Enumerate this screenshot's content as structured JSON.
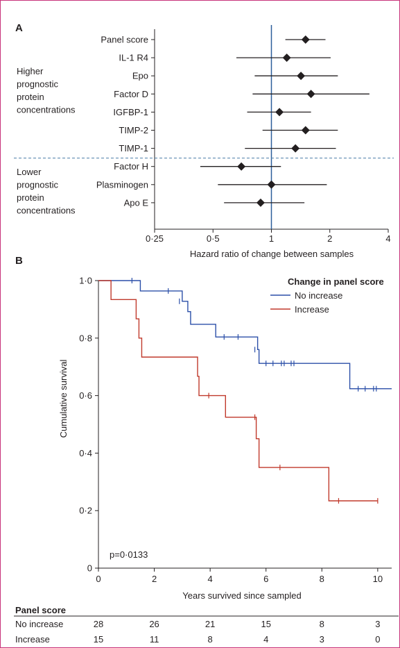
{
  "chart_data": [
    {
      "type": "forest",
      "panel": "A",
      "xlabel": "Hazard ratio of change between samples",
      "xscale": "log2",
      "xlim": [
        0.25,
        4
      ],
      "xticks": [
        "0·25",
        "0·5",
        "1",
        "2",
        "4"
      ],
      "xtick_values": [
        0.25,
        0.5,
        1,
        2,
        4
      ],
      "reference_line": 1,
      "groups": [
        {
          "label": "Higher prognostic protein concentrations",
          "label_lines": [
            "Higher",
            "prognostic",
            "protein",
            "concentrations"
          ]
        },
        {
          "label": "Lower prognostic protein concentrations",
          "label_lines": [
            "Lower",
            "prognostic",
            "protein",
            "concentrations"
          ]
        }
      ],
      "rows": [
        {
          "label": "Panel score",
          "group": 0,
          "hr": 1.5,
          "low": 1.18,
          "high": 1.9
        },
        {
          "label": "IL-1 R4",
          "group": 0,
          "hr": 1.2,
          "low": 0.66,
          "high": 2.02
        },
        {
          "label": "Epo",
          "group": 0,
          "hr": 1.42,
          "low": 0.82,
          "high": 2.2
        },
        {
          "label": "Factor D",
          "group": 0,
          "hr": 1.6,
          "low": 0.8,
          "high": 3.2
        },
        {
          "label": "IGFBP-1",
          "group": 0,
          "hr": 1.1,
          "low": 0.75,
          "high": 1.6
        },
        {
          "label": "TIMP-2",
          "group": 0,
          "hr": 1.5,
          "low": 0.9,
          "high": 2.2
        },
        {
          "label": "TIMP-1",
          "group": 0,
          "hr": 1.33,
          "low": 0.73,
          "high": 2.15
        },
        {
          "label": "Factor H",
          "group": 1,
          "hr": 0.7,
          "low": 0.43,
          "high": 1.12
        },
        {
          "label": "Plasminogen",
          "group": 1,
          "hr": 1.0,
          "low": 0.53,
          "high": 1.93
        },
        {
          "label": "Apo E",
          "group": 1,
          "hr": 0.88,
          "low": 0.57,
          "high": 1.48
        }
      ]
    },
    {
      "type": "line",
      "panel": "B",
      "xlabel": "Years survived since sampled",
      "ylabel": "Cumulative survival",
      "xlim": [
        0,
        10.5
      ],
      "ylim": [
        0,
        1
      ],
      "xticks": [
        "0",
        "2",
        "4",
        "6",
        "8",
        "10"
      ],
      "xtick_values": [
        0,
        2,
        4,
        6,
        8,
        10
      ],
      "yticks": [
        "0",
        "0·2",
        "0·4",
        "0·6",
        "0·8",
        "1·0"
      ],
      "ytick_values": [
        0,
        0.2,
        0.4,
        0.6,
        0.8,
        1.0
      ],
      "legend_title": "Change in panel score",
      "legend_position": "top-right",
      "annotation": "p=0·0133",
      "series": [
        {
          "name": "No increase",
          "color": "#2b4fa8",
          "steps": [
            [
              0,
              1.0
            ],
            [
              1.5,
              0.964
            ],
            [
              3.0,
              0.928
            ],
            [
              3.2,
              0.892
            ],
            [
              3.3,
              0.848
            ],
            [
              4.2,
              0.804
            ],
            [
              5.7,
              0.76
            ],
            [
              5.75,
              0.712
            ],
            [
              9.0,
              0.624
            ],
            [
              10.5,
              0.624
            ]
          ],
          "censor": [
            [
              1.2,
              1.0
            ],
            [
              2.5,
              0.964
            ],
            [
              2.9,
              0.928
            ],
            [
              4.5,
              0.804
            ],
            [
              5.0,
              0.804
            ],
            [
              5.6,
              0.76
            ],
            [
              6.0,
              0.712
            ],
            [
              6.25,
              0.712
            ],
            [
              6.55,
              0.712
            ],
            [
              6.65,
              0.712
            ],
            [
              6.9,
              0.712
            ],
            [
              7.0,
              0.712
            ],
            [
              9.3,
              0.624
            ],
            [
              9.55,
              0.624
            ],
            [
              9.85,
              0.624
            ],
            [
              9.95,
              0.624
            ]
          ]
        },
        {
          "name": "Increase",
          "color": "#c0392b",
          "steps": [
            [
              0,
              1.0
            ],
            [
              0.45,
              0.934
            ],
            [
              1.35,
              0.867
            ],
            [
              1.45,
              0.8
            ],
            [
              1.55,
              0.734
            ],
            [
              3.55,
              0.667
            ],
            [
              3.6,
              0.6
            ],
            [
              4.55,
              0.525
            ],
            [
              5.65,
              0.45
            ],
            [
              5.75,
              0.35
            ],
            [
              8.25,
              0.234
            ],
            [
              10.0,
              0.234
            ]
          ],
          "censor": [
            [
              3.95,
              0.6
            ],
            [
              5.6,
              0.525
            ],
            [
              6.5,
              0.35
            ],
            [
              8.6,
              0.234
            ],
            [
              10.0,
              0.234
            ]
          ]
        }
      ]
    }
  ],
  "risk_table": {
    "title": "Panel score",
    "rows": [
      {
        "label": "No increase",
        "values": [
          "28",
          "26",
          "21",
          "15",
          "8",
          "3"
        ]
      },
      {
        "label": "Increase",
        "values": [
          "15",
          "11",
          "8",
          "4",
          "3",
          "0"
        ]
      }
    ]
  }
}
